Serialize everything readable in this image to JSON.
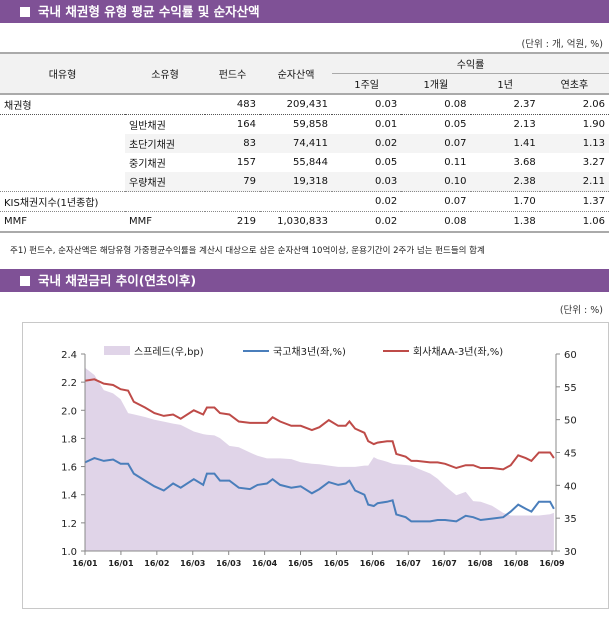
{
  "section1": {
    "title": "국내 채권형 유형 평균 수익률 및 순자산액",
    "unit": "(단위 : 개, 억원, %)"
  },
  "table": {
    "headers": {
      "major": "대유형",
      "minor": "소유형",
      "funds": "펀드수",
      "assets": "순자산액",
      "returns": "수익률",
      "w1": "1주일",
      "m1": "1개월",
      "y1": "1년",
      "ytd": "연초후"
    },
    "rows": [
      {
        "major": "채권형",
        "minor": "",
        "funds": "483",
        "assets": "209,431",
        "w1": "0.03",
        "m1": "0.08",
        "y1": "2.37",
        "ytd": "2.06"
      },
      {
        "major": "",
        "minor": "일반채권",
        "funds": "164",
        "assets": "59,858",
        "w1": "0.01",
        "m1": "0.05",
        "y1": "2.13",
        "ytd": "1.90"
      },
      {
        "major": "",
        "minor": "초단기채권",
        "funds": "83",
        "assets": "74,411",
        "w1": "0.02",
        "m1": "0.07",
        "y1": "1.41",
        "ytd": "1.13"
      },
      {
        "major": "",
        "minor": "중기채권",
        "funds": "157",
        "assets": "55,844",
        "w1": "0.05",
        "m1": "0.11",
        "y1": "3.68",
        "ytd": "3.27"
      },
      {
        "major": "",
        "minor": "우량채권",
        "funds": "79",
        "assets": "19,318",
        "w1": "0.03",
        "m1": "0.10",
        "y1": "2.38",
        "ytd": "2.11"
      },
      {
        "major": "KIS채권지수(1년종합)",
        "minor": "",
        "funds": "",
        "assets": "",
        "w1": "0.02",
        "m1": "0.07",
        "y1": "1.70",
        "ytd": "1.37"
      },
      {
        "major": "MMF",
        "minor": "MMF",
        "funds": "219",
        "assets": "1,030,833",
        "w1": "0.02",
        "m1": "0.08",
        "y1": "1.38",
        "ytd": "1.06"
      }
    ],
    "footnote": "주1) 펀드수, 순자산액은 해당유형 가중평균수익률을 계산시 대상으로 삼은 순자산액 10억이상, 운용기간이 2주가 넘는 펀드들의 합계"
  },
  "section2": {
    "title": "국내 채권금리 추이(연초이후)",
    "unit": "(단위 : %)"
  },
  "colors": {
    "header": "#7f5196",
    "spread": "#e0d4e8",
    "gov": "#4a7ebb",
    "corp": "#be4b48"
  },
  "chart_data": {
    "type": "line",
    "xlim": [
      "2016-01-04",
      "2016-09-09"
    ],
    "ylim_left": [
      1.0,
      2.4
    ],
    "yticks_left": [
      "1.0",
      "1.2",
      "1.4",
      "1.6",
      "1.8",
      "2.0",
      "2.2",
      "2.4"
    ],
    "ylim_right": [
      30,
      60
    ],
    "yticks_right": [
      "30",
      "35",
      "40",
      "45",
      "50",
      "55",
      "60"
    ],
    "xtick_labels": [
      "16/01",
      "16/01",
      "16/02",
      "16/03",
      "16/03",
      "16/04",
      "16/05",
      "16/05",
      "16/06",
      "16/07",
      "16/07",
      "16/08",
      "16/08",
      "16/09"
    ],
    "legend_position": "top",
    "x": [
      "2016-01-04",
      "2016-01-09",
      "2016-01-14",
      "2016-01-19",
      "2016-01-23",
      "2016-01-27",
      "2016-01-30",
      "2016-02-05",
      "2016-02-10",
      "2016-02-15",
      "2016-02-20",
      "2016-02-24",
      "2016-03-02",
      "2016-03-07",
      "2016-03-09",
      "2016-03-13",
      "2016-03-16",
      "2016-03-21",
      "2016-03-26",
      "2016-04-01",
      "2016-04-05",
      "2016-04-10",
      "2016-04-13",
      "2016-04-17",
      "2016-04-23",
      "2016-04-28",
      "2016-05-04",
      "2016-05-08",
      "2016-05-13",
      "2016-05-18",
      "2016-05-22",
      "2016-05-24",
      "2016-05-27",
      "2016-06-01",
      "2016-06-03",
      "2016-06-06",
      "2016-06-08",
      "2016-06-13",
      "2016-06-16",
      "2016-06-18",
      "2016-06-23",
      "2016-06-26",
      "2016-06-29",
      "2016-07-06",
      "2016-07-10",
      "2016-07-14",
      "2016-07-20",
      "2016-07-25",
      "2016-07-29",
      "2016-08-02",
      "2016-08-08",
      "2016-08-14",
      "2016-08-18",
      "2016-08-22",
      "2016-08-26",
      "2016-08-29",
      "2016-09-02",
      "2016-09-08",
      "2016-09-10"
    ],
    "series": [
      {
        "name": "스프레드(우,bp)",
        "type": "area",
        "axis": "right",
        "values": [
          57.9,
          56.8,
          54.5,
          54,
          53.1,
          51,
          50.8,
          50.4,
          50,
          49.7,
          49.4,
          49.2,
          48.2,
          47.8,
          47.7,
          47.6,
          47.2,
          46,
          45.8,
          45,
          44.5,
          44.1,
          44.1,
          44.1,
          44,
          43.5,
          43.3,
          43.2,
          43,
          42.8,
          42.8,
          42.8,
          42.8,
          43,
          43,
          44.3,
          44,
          43.6,
          43.3,
          43.2,
          43.1,
          43,
          42.6,
          41.8,
          41,
          39.9,
          38.5,
          39,
          37.6,
          37.5,
          36.9,
          35.8,
          35.4,
          35.4,
          35.4,
          35.4,
          35.4,
          35.6,
          35.8
        ]
      },
      {
        "name": "국고채3년(좌,%)",
        "type": "line",
        "axis": "left",
        "values": [
          1.63,
          1.66,
          1.64,
          1.65,
          1.62,
          1.62,
          1.55,
          1.5,
          1.46,
          1.43,
          1.48,
          1.45,
          1.51,
          1.47,
          1.55,
          1.55,
          1.5,
          1.5,
          1.45,
          1.44,
          1.47,
          1.48,
          1.51,
          1.47,
          1.45,
          1.46,
          1.41,
          1.44,
          1.49,
          1.47,
          1.48,
          1.5,
          1.43,
          1.4,
          1.33,
          1.32,
          1.34,
          1.35,
          1.36,
          1.26,
          1.24,
          1.21,
          1.21,
          1.21,
          1.22,
          1.22,
          1.21,
          1.25,
          1.24,
          1.22,
          1.23,
          1.24,
          1.28,
          1.33,
          1.3,
          1.28,
          1.35,
          1.35,
          1.3
        ]
      },
      {
        "name": "회사채AA-3년(좌,%)",
        "type": "line",
        "axis": "left",
        "values": [
          2.21,
          2.22,
          2.19,
          2.18,
          2.15,
          2.14,
          2.06,
          2.02,
          1.98,
          1.96,
          1.97,
          1.94,
          2.0,
          1.97,
          2.02,
          2.02,
          1.98,
          1.97,
          1.92,
          1.91,
          1.91,
          1.91,
          1.95,
          1.92,
          1.89,
          1.89,
          1.86,
          1.88,
          1.93,
          1.89,
          1.89,
          1.92,
          1.87,
          1.84,
          1.78,
          1.76,
          1.77,
          1.78,
          1.78,
          1.69,
          1.67,
          1.64,
          1.64,
          1.63,
          1.63,
          1.62,
          1.59,
          1.61,
          1.61,
          1.59,
          1.59,
          1.58,
          1.61,
          1.68,
          1.66,
          1.64,
          1.7,
          1.7,
          1.66
        ]
      }
    ]
  }
}
